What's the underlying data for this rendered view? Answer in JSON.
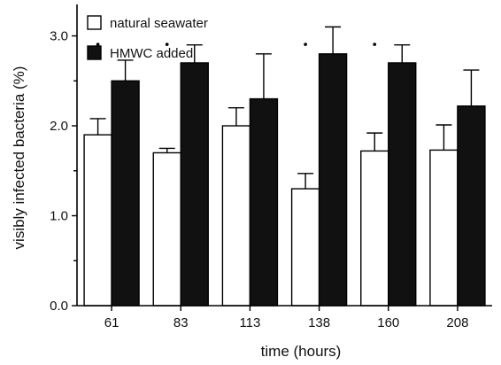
{
  "chart_data": {
    "type": "bar",
    "categories": [
      "61",
      "83",
      "113",
      "138",
      "160",
      "208"
    ],
    "series": [
      {
        "name": "natural seawater",
        "color": "#ffffff",
        "values": [
          1.9,
          1.7,
          2.0,
          1.3,
          1.72,
          1.73
        ],
        "errors": [
          0.18,
          0.05,
          0.2,
          0.17,
          0.2,
          0.28
        ]
      },
      {
        "name": "HMWC added",
        "color": "#111111",
        "values": [
          2.5,
          2.7,
          2.3,
          2.8,
          2.7,
          2.22
        ],
        "errors": [
          0.23,
          0.2,
          0.5,
          0.3,
          0.2,
          0.4
        ]
      }
    ],
    "significance_markers": [
      true,
      true,
      false,
      true,
      true,
      false
    ],
    "significance_symbol": "•",
    "xlabel": "time  (hours)",
    "ylabel": "visibly infected bacteria (%)",
    "ylim": [
      0,
      3.0
    ],
    "yticks": [
      0.0,
      1.0,
      2.0,
      3.0
    ],
    "ytick_labels": [
      "0.0",
      "1.0",
      "2.0",
      "3.0"
    ],
    "grid": false,
    "legend_position": "top-left"
  }
}
